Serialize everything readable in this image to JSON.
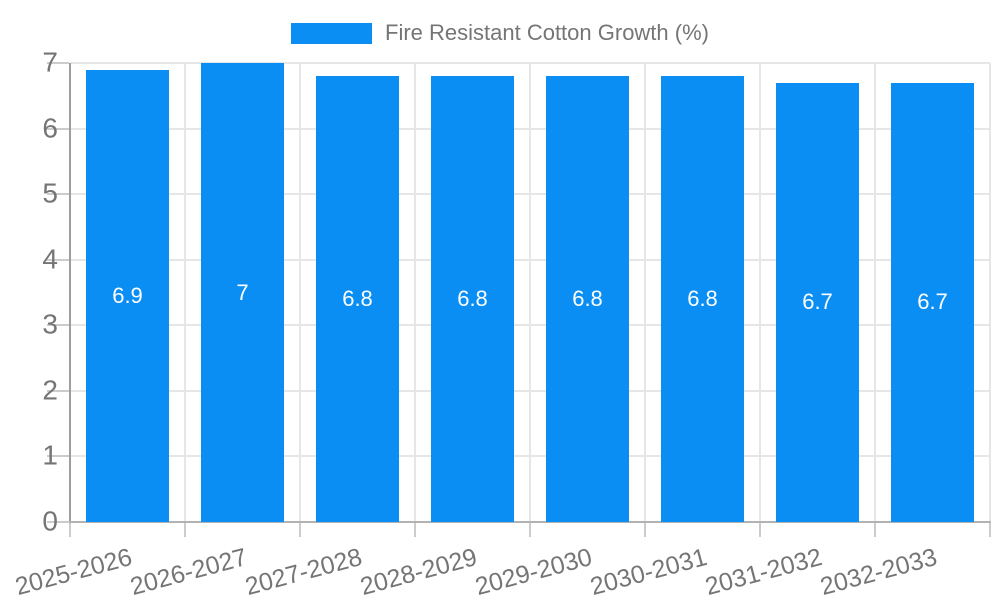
{
  "legend": {
    "label": "Fire Resistant Cotton Growth (%)"
  },
  "colors": {
    "bar": "#0a8ef4",
    "axis_text": "#757575",
    "value_label_text": "#ffffff",
    "gridline": "#e6e6e6",
    "axis_line": "#9e9e9e",
    "tick_mark": "#cccccc",
    "baseline": "#b3b3b3",
    "background": "#ffffff"
  },
  "chart_data": {
    "type": "bar",
    "title": "",
    "xlabel": "",
    "ylabel": "",
    "categories": [
      "2025-2026",
      "2026-2027",
      "2027-2028",
      "2028-2029",
      "2029-2030",
      "2030-2031",
      "2031-2032",
      "2032-2033"
    ],
    "series": [
      {
        "name": "Fire Resistant Cotton Growth (%)",
        "values": [
          6.9,
          7,
          6.8,
          6.8,
          6.8,
          6.8,
          6.7,
          6.7
        ],
        "value_labels": [
          "6.9",
          "7",
          "6.8",
          "6.8",
          "6.8",
          "6.8",
          "6.7",
          "6.7"
        ],
        "color": "#0a8ef4"
      }
    ],
    "ylim": [
      0,
      7
    ],
    "yticks": [
      0,
      1,
      2,
      3,
      4,
      5,
      6,
      7
    ],
    "ytick_labels": [
      "0",
      "1",
      "2",
      "3",
      "4",
      "5",
      "6",
      "7"
    ],
    "grid": true,
    "legend_position": "top",
    "value_label_position": "inside-center",
    "x_label_rotation_deg": -15
  }
}
